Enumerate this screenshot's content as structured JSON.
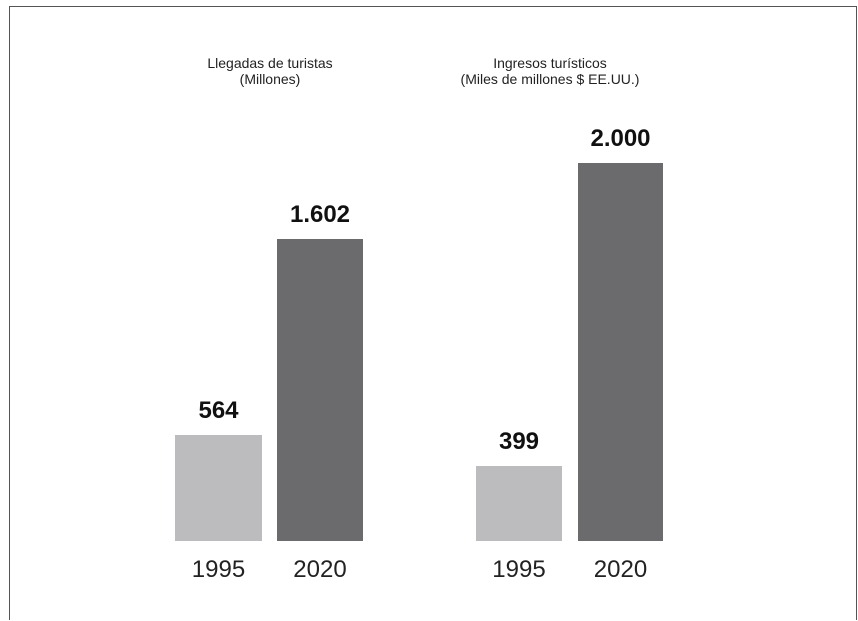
{
  "chart_data": [
    {
      "type": "bar",
      "title_line1": "Llegadas de turistas",
      "title_line2": "(Millones)",
      "categories": [
        "1995",
        "2020"
      ],
      "values": [
        564,
        1602
      ],
      "value_labels": [
        "564",
        "1.602"
      ],
      "colors": [
        "#bcbcbf",
        "#6b6b6d"
      ]
    },
    {
      "type": "bar",
      "title_line1": "Ingresos turísticos",
      "title_line2": "(Miles de millones $ EE.UU.)",
      "categories": [
        "1995",
        "2020"
      ],
      "values": [
        399,
        2000
      ],
      "value_labels": [
        "399",
        "2.000"
      ],
      "colors": [
        "#bcbcbf",
        "#6b6b6d"
      ]
    }
  ]
}
